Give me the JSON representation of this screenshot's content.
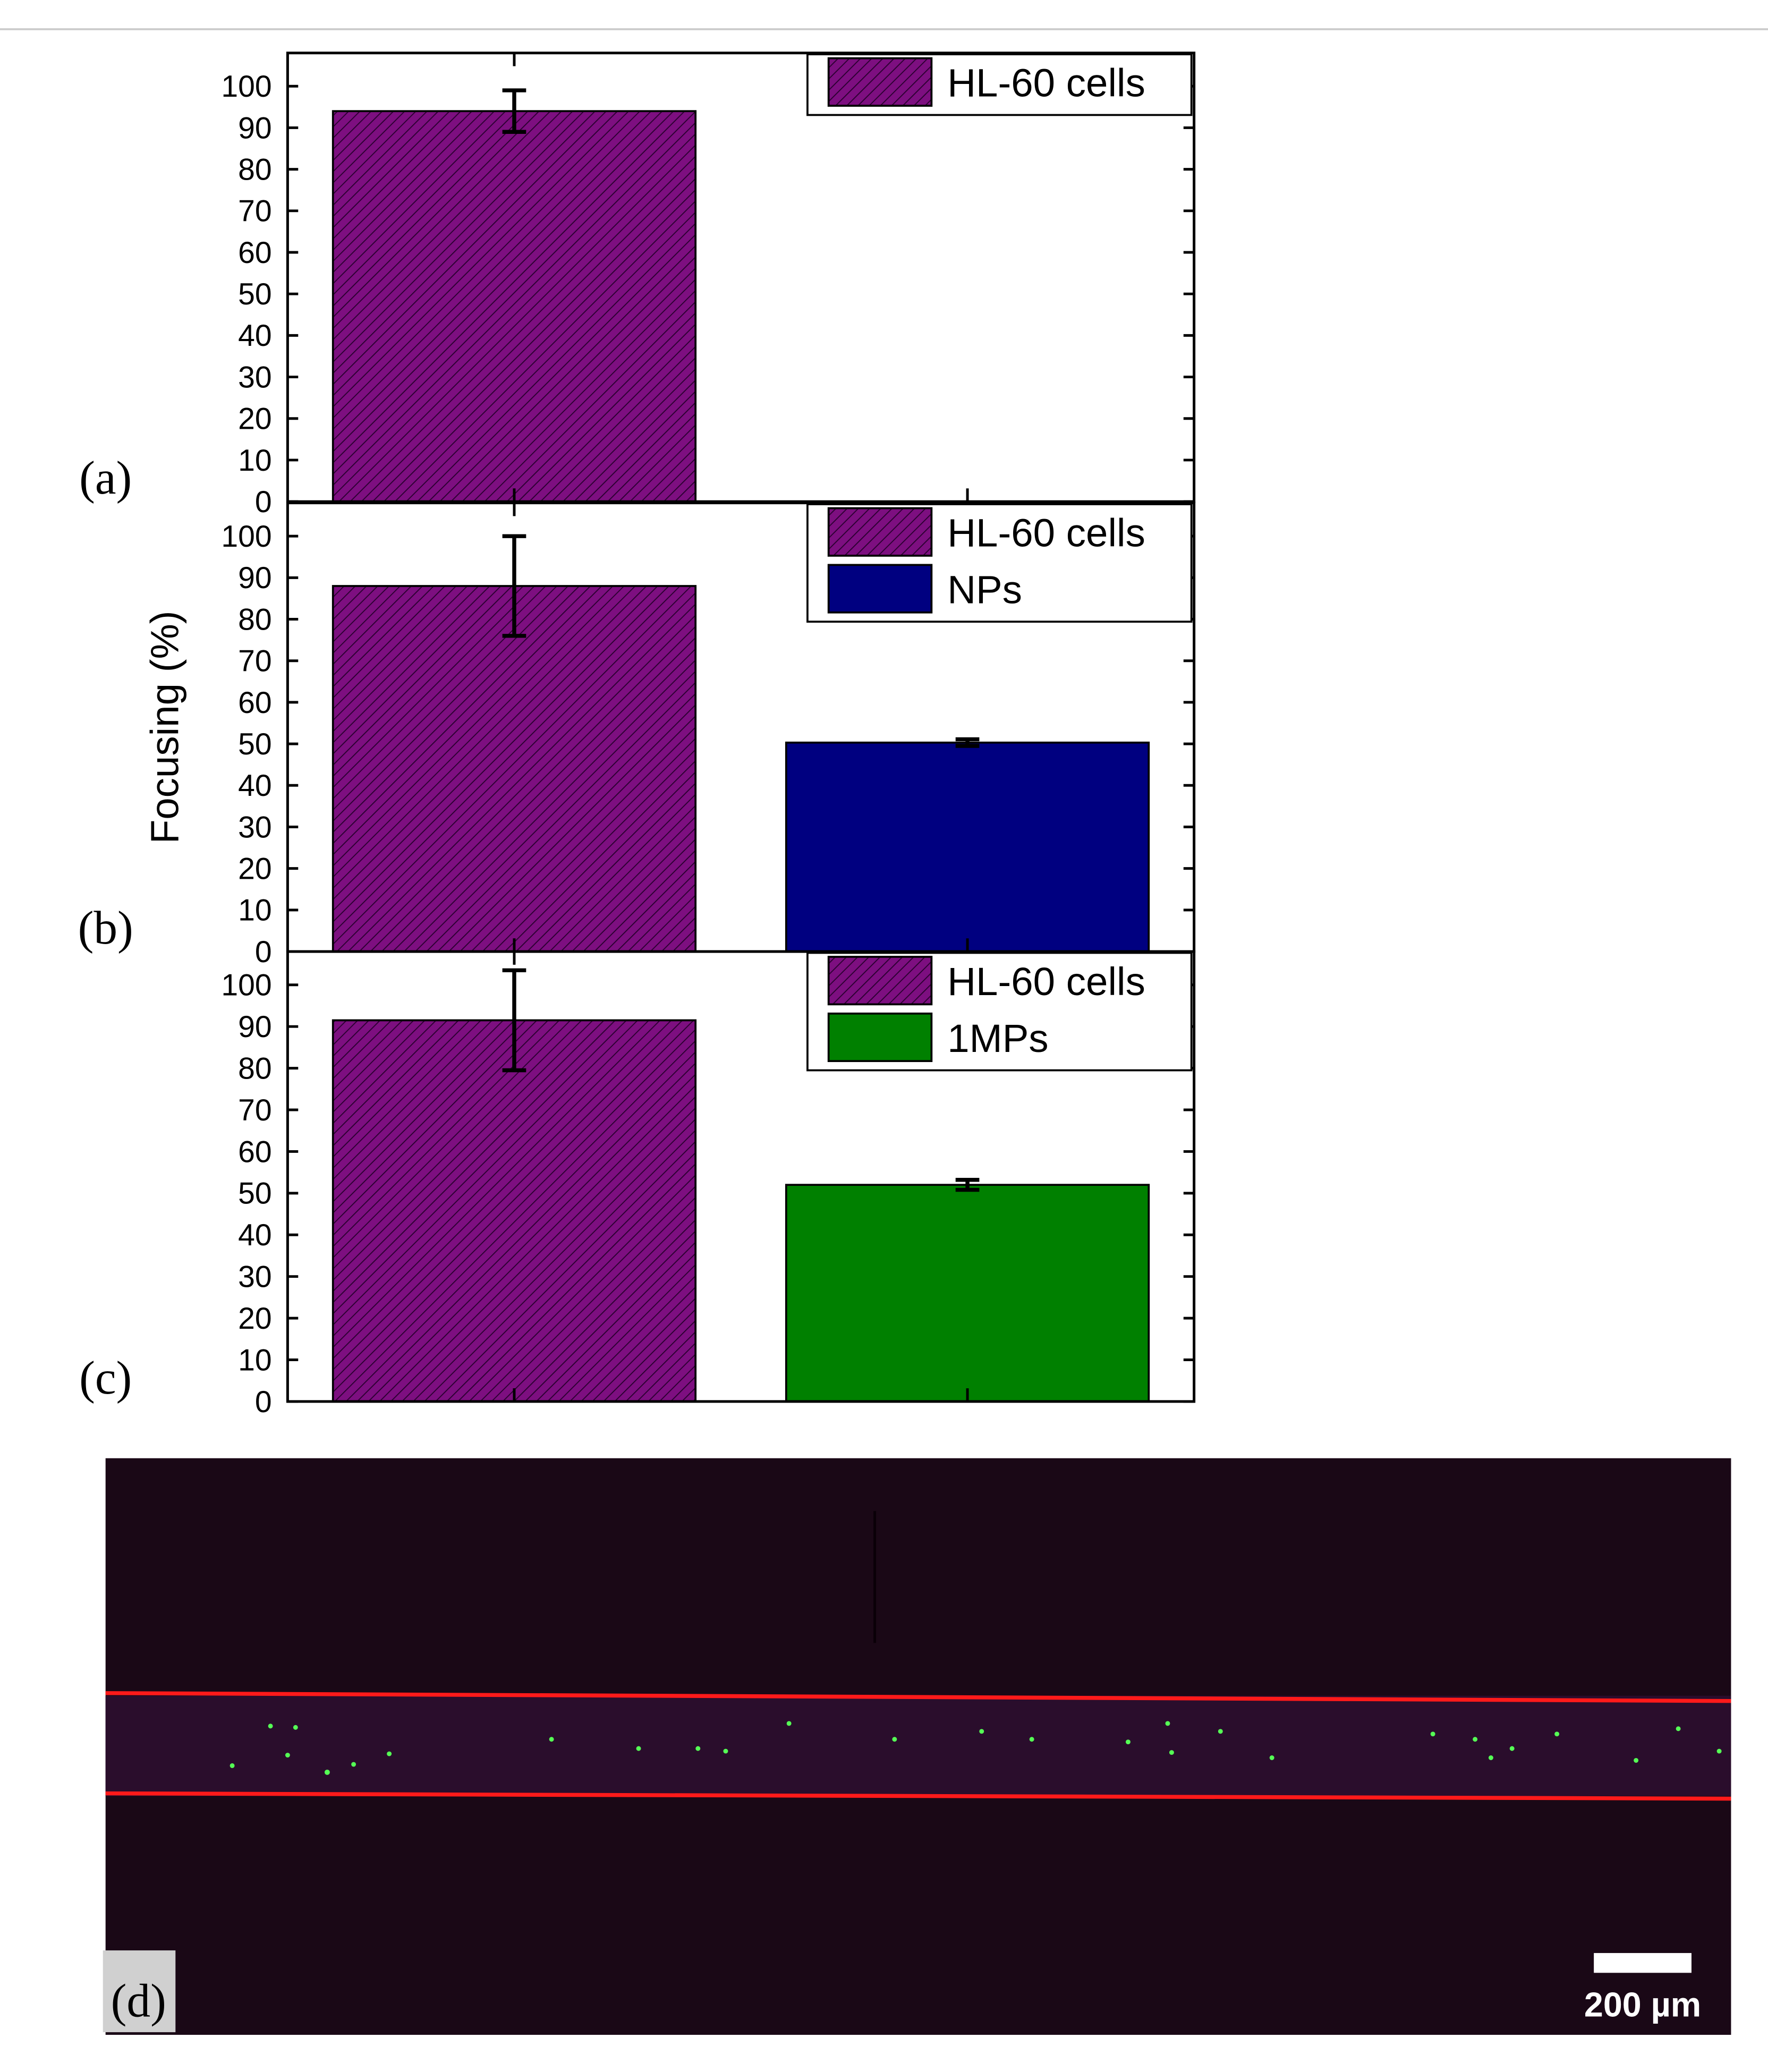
{
  "chart_data": [
    {
      "type": "bar",
      "panel_label": "(a)",
      "categories": [
        null,
        null
      ],
      "series": [
        {
          "name": "HL-60 cells",
          "color": "#7d0f80",
          "hatch": true,
          "values": [
            94,
            null
          ],
          "errors": [
            5,
            null
          ]
        }
      ],
      "ylim": [
        0,
        108
      ],
      "yticks": [
        0,
        10,
        20,
        30,
        40,
        50,
        60,
        70,
        80,
        90,
        100
      ]
    },
    {
      "type": "bar",
      "panel_label": "(b)",
      "ylabel": "Focusing (%)",
      "categories": [
        null,
        null
      ],
      "series": [
        {
          "name": "HL-60 cells",
          "color": "#7d0f80",
          "hatch": true,
          "values": [
            88,
            null
          ],
          "errors": [
            12,
            null
          ]
        },
        {
          "name": "NPs",
          "color": "#000080",
          "hatch": false,
          "values": [
            null,
            50.3
          ],
          "errors": [
            null,
            0.8
          ]
        }
      ],
      "ylim": [
        0,
        108
      ],
      "yticks": [
        0,
        10,
        20,
        30,
        40,
        50,
        60,
        70,
        80,
        90,
        100
      ]
    },
    {
      "type": "bar",
      "panel_label": "(c)",
      "categories": [
        null,
        null
      ],
      "series": [
        {
          "name": "HL-60 cells",
          "color": "#7d0f80",
          "hatch": true,
          "values": [
            91.5,
            null
          ],
          "errors": [
            12,
            null
          ]
        },
        {
          "name": "1MPs",
          "color": "#008000",
          "hatch": false,
          "values": [
            null,
            52
          ],
          "errors": [
            null,
            1.2
          ]
        }
      ],
      "ylim": [
        0,
        108
      ],
      "yticks": [
        0,
        10,
        20,
        30,
        40,
        50,
        60,
        70,
        80,
        90,
        100
      ]
    }
  ],
  "image": {
    "panel_label": "(d)",
    "scale_bar": "200 µm"
  }
}
